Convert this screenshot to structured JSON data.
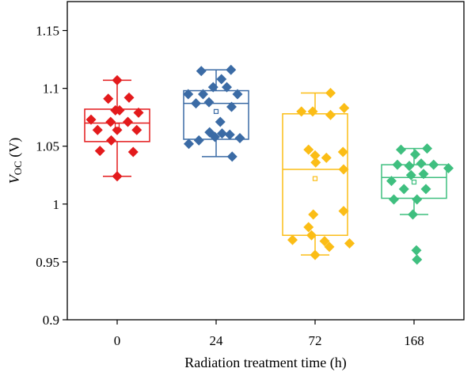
{
  "chart_data": {
    "type": "box-scatter",
    "xlabel": "Radiation treatment time (h)",
    "ylabel_main": "V",
    "ylabel_sub": "OC",
    "ylabel_unit": " (V)",
    "ylim": [
      0.9,
      1.175
    ],
    "yticks": [
      0.9,
      0.95,
      1,
      1.05,
      1.1,
      1.15
    ],
    "ytick_labels": [
      "0.9",
      "0.95",
      "1",
      "1.05",
      "1.1",
      "1.15"
    ],
    "categories": [
      "0",
      "24",
      "72",
      "168"
    ],
    "groups": [
      {
        "category": "0",
        "color": "#e31a1c",
        "box": {
          "whisker_low": 1.024,
          "q1": 1.054,
          "median": 1.07,
          "q3": 1.082,
          "whisker_high": 1.107,
          "mean": 1.068
        },
        "points": [
          {
            "dx": 0.0,
            "y": 1.107
          },
          {
            "dx": -0.15,
            "y": 1.091
          },
          {
            "dx": 0.2,
            "y": 1.092
          },
          {
            "dx": -0.03,
            "y": 1.081
          },
          {
            "dx": 0.04,
            "y": 1.081
          },
          {
            "dx": 0.36,
            "y": 1.079
          },
          {
            "dx": -0.44,
            "y": 1.073
          },
          {
            "dx": -0.11,
            "y": 1.071
          },
          {
            "dx": 0.18,
            "y": 1.071
          },
          {
            "dx": -0.33,
            "y": 1.064
          },
          {
            "dx": 0.0,
            "y": 1.064
          },
          {
            "dx": 0.33,
            "y": 1.064
          },
          {
            "dx": -0.1,
            "y": 1.055
          },
          {
            "dx": -0.29,
            "y": 1.046
          },
          {
            "dx": 0.27,
            "y": 1.045
          },
          {
            "dx": 0.0,
            "y": 1.024
          }
        ]
      },
      {
        "category": "24",
        "color": "#3b6ba5",
        "box": {
          "whisker_low": 1.041,
          "q1": 1.056,
          "median": 1.087,
          "q3": 1.098,
          "whisker_high": 1.116,
          "mean": 1.08
        },
        "points": [
          {
            "dx": -0.25,
            "y": 1.115
          },
          {
            "dx": 0.25,
            "y": 1.116
          },
          {
            "dx": 0.09,
            "y": 1.108
          },
          {
            "dx": -0.05,
            "y": 1.101
          },
          {
            "dx": 0.18,
            "y": 1.101
          },
          {
            "dx": -0.47,
            "y": 1.095
          },
          {
            "dx": -0.22,
            "y": 1.095
          },
          {
            "dx": 0.36,
            "y": 1.095
          },
          {
            "dx": -0.34,
            "y": 1.087
          },
          {
            "dx": -0.12,
            "y": 1.088
          },
          {
            "dx": 0.26,
            "y": 1.084
          },
          {
            "dx": 0.07,
            "y": 1.071
          },
          {
            "dx": -0.11,
            "y": 1.062
          },
          {
            "dx": 0.1,
            "y": 1.061
          },
          {
            "dx": 0.23,
            "y": 1.06
          },
          {
            "dx": -0.02,
            "y": 1.058
          },
          {
            "dx": 0.4,
            "y": 1.057
          },
          {
            "dx": -0.29,
            "y": 1.055
          },
          {
            "dx": -0.46,
            "y": 1.052
          },
          {
            "dx": 0.27,
            "y": 1.041
          }
        ]
      },
      {
        "category": "72",
        "color": "#fbbd16",
        "box": {
          "whisker_low": 0.956,
          "q1": 0.973,
          "median": 1.03,
          "q3": 1.078,
          "whisker_high": 1.096,
          "mean": 1.022
        },
        "points": [
          {
            "dx": 0.26,
            "y": 1.096
          },
          {
            "dx": 0.49,
            "y": 1.083
          },
          {
            "dx": -0.23,
            "y": 1.08
          },
          {
            "dx": -0.04,
            "y": 1.08
          },
          {
            "dx": 0.26,
            "y": 1.077
          },
          {
            "dx": -0.11,
            "y": 1.047
          },
          {
            "dx": 0.47,
            "y": 1.045
          },
          {
            "dx": 0.0,
            "y": 1.042
          },
          {
            "dx": 0.19,
            "y": 1.04
          },
          {
            "dx": 0.01,
            "y": 1.036
          },
          {
            "dx": 0.48,
            "y": 1.03
          },
          {
            "dx": 0.48,
            "y": 0.994
          },
          {
            "dx": -0.03,
            "y": 0.991
          },
          {
            "dx": -0.11,
            "y": 0.98
          },
          {
            "dx": -0.06,
            "y": 0.973
          },
          {
            "dx": -0.38,
            "y": 0.969
          },
          {
            "dx": 0.16,
            "y": 0.968
          },
          {
            "dx": 0.58,
            "y": 0.966
          },
          {
            "dx": 0.24,
            "y": 0.963
          },
          {
            "dx": 0.0,
            "y": 0.956
          }
        ]
      },
      {
        "category": "168",
        "color": "#3fbf7f",
        "box": {
          "whisker_low": 0.991,
          "q1": 1.005,
          "median": 1.023,
          "q3": 1.034,
          "whisker_high": 1.048,
          "mean": 1.019
        },
        "points": [
          {
            "dx": -0.22,
            "y": 1.047
          },
          {
            "dx": 0.22,
            "y": 1.048
          },
          {
            "dx": 0.02,
            "y": 1.043
          },
          {
            "dx": -0.28,
            "y": 1.034
          },
          {
            "dx": 0.12,
            "y": 1.035
          },
          {
            "dx": -0.08,
            "y": 1.033
          },
          {
            "dx": 0.33,
            "y": 1.034
          },
          {
            "dx": 0.58,
            "y": 1.031
          },
          {
            "dx": -0.05,
            "y": 1.025
          },
          {
            "dx": 0.16,
            "y": 1.026
          },
          {
            "dx": -0.38,
            "y": 1.02
          },
          {
            "dx": -0.17,
            "y": 1.013
          },
          {
            "dx": 0.2,
            "y": 1.013
          },
          {
            "dx": -0.34,
            "y": 1.004
          },
          {
            "dx": 0.05,
            "y": 1.004
          },
          {
            "dx": -0.02,
            "y": 0.991
          },
          {
            "dx": 0.04,
            "y": 0.96
          },
          {
            "dx": 0.05,
            "y": 0.952
          }
        ]
      }
    ]
  }
}
